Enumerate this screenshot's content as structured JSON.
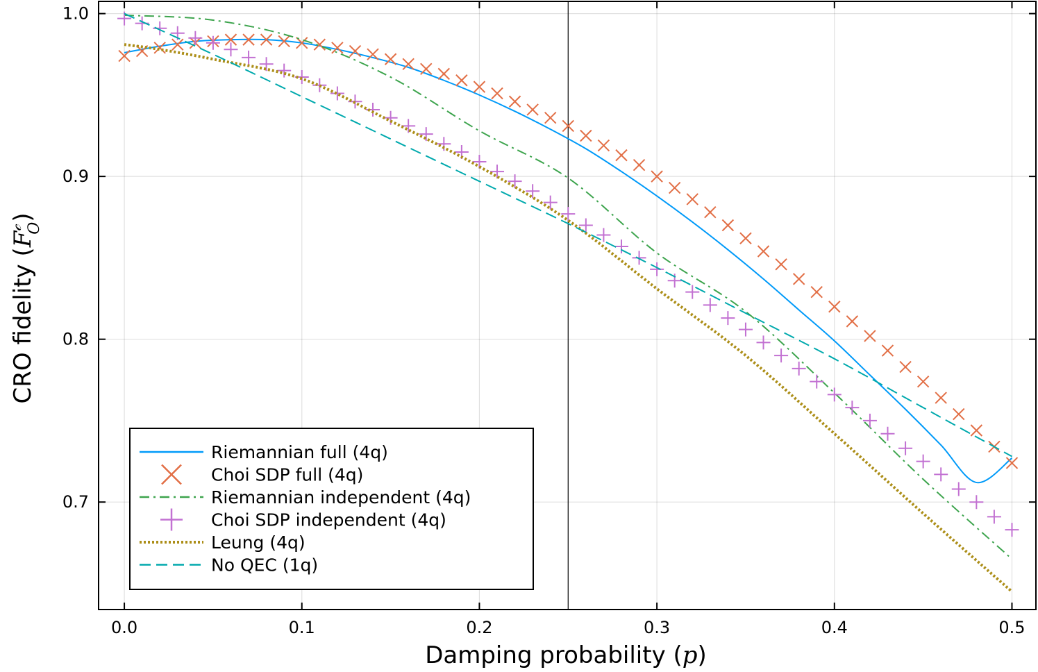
{
  "chart_data": {
    "type": "line",
    "title": "",
    "xlabel": "Damping probability (",
    "xlabel_math": "p",
    "xlabel_end": ")",
    "ylabel": "CRO fidelity (",
    "ylabel_math": "F",
    "ylabel_math_sup": "𝒸",
    "ylabel_math_sub": "O",
    "ylabel_end": ")",
    "xlim": [
      -0.0145,
      0.5135
    ],
    "ylim": [
      0.634,
      1.0075
    ],
    "xticks": [
      0.0,
      0.1,
      0.2,
      0.3,
      0.4,
      0.5
    ],
    "xtick_labels": [
      "0.0",
      "0.1",
      "0.2",
      "0.3",
      "0.4",
      "0.5"
    ],
    "yticks": [
      0.7,
      0.8,
      0.9,
      1.0
    ],
    "ytick_labels": [
      "0.7",
      "0.8",
      "0.9",
      "1.0"
    ],
    "grid": true,
    "vline_x": 0.25,
    "legend_position": "bottom-left",
    "colors": {
      "riemannian_full": "#009af9",
      "choi_full": "#e26f46",
      "riemannian_indep": "#3da44d",
      "choi_indep": "#c271d2",
      "leung": "#ac8e18",
      "no_qec": "#00a9ad"
    },
    "series": [
      {
        "name": "Riemannian full (4q)",
        "key": "riemannian_full",
        "style": "solid",
        "x": [
          0.0,
          0.02,
          0.04,
          0.06,
          0.08,
          0.1,
          0.12,
          0.14,
          0.16,
          0.18,
          0.2,
          0.22,
          0.24,
          0.26,
          0.28,
          0.3,
          0.32,
          0.34,
          0.36,
          0.38,
          0.4,
          0.42,
          0.44,
          0.46,
          0.48,
          0.5
        ],
        "y": [
          0.976,
          0.98,
          0.983,
          0.984,
          0.984,
          0.982,
          0.978,
          0.973,
          0.967,
          0.959,
          0.95,
          0.94,
          0.929,
          0.917,
          0.903,
          0.888,
          0.872,
          0.855,
          0.837,
          0.818,
          0.799,
          0.778,
          0.757,
          0.735,
          0.712,
          0.727
        ]
      },
      {
        "name": "Choi SDP full (4q)",
        "key": "choi_full",
        "style": "x-marker",
        "x": [
          0.0,
          0.01,
          0.02,
          0.03,
          0.04,
          0.05,
          0.06,
          0.07,
          0.08,
          0.09,
          0.1,
          0.11,
          0.12,
          0.13,
          0.14,
          0.15,
          0.16,
          0.17,
          0.18,
          0.19,
          0.2,
          0.21,
          0.22,
          0.23,
          0.24,
          0.25,
          0.26,
          0.27,
          0.28,
          0.29,
          0.3,
          0.31,
          0.32,
          0.33,
          0.34,
          0.35,
          0.36,
          0.37,
          0.38,
          0.39,
          0.4,
          0.41,
          0.42,
          0.43,
          0.44,
          0.45,
          0.46,
          0.47,
          0.48,
          0.49,
          0.5
        ],
        "y": [
          0.974,
          0.977,
          0.979,
          0.981,
          0.982,
          0.983,
          0.984,
          0.984,
          0.984,
          0.983,
          0.982,
          0.981,
          0.979,
          0.977,
          0.975,
          0.972,
          0.969,
          0.966,
          0.963,
          0.959,
          0.955,
          0.951,
          0.946,
          0.941,
          0.936,
          0.931,
          0.925,
          0.919,
          0.913,
          0.907,
          0.9,
          0.893,
          0.886,
          0.878,
          0.87,
          0.862,
          0.854,
          0.846,
          0.837,
          0.829,
          0.82,
          0.811,
          0.802,
          0.793,
          0.783,
          0.774,
          0.764,
          0.754,
          0.744,
          0.734,
          0.724
        ]
      },
      {
        "name": "Riemannian independent (4q)",
        "key": "riemannian_indep",
        "style": "dashdot",
        "x": [
          0.0,
          0.05,
          0.1,
          0.15,
          0.2,
          0.25,
          0.3,
          0.35,
          0.4,
          0.45,
          0.5
        ],
        "y": [
          0.999,
          0.996,
          0.984,
          0.961,
          0.928,
          0.899,
          0.853,
          0.817,
          0.767,
          0.714,
          0.665
        ]
      },
      {
        "name": "Choi SDP independent (4q)",
        "key": "choi_indep",
        "style": "plus-marker",
        "x": [
          0.0,
          0.01,
          0.02,
          0.03,
          0.04,
          0.05,
          0.06,
          0.07,
          0.08,
          0.09,
          0.1,
          0.11,
          0.12,
          0.13,
          0.14,
          0.15,
          0.16,
          0.17,
          0.18,
          0.19,
          0.2,
          0.21,
          0.22,
          0.23,
          0.24,
          0.25,
          0.26,
          0.27,
          0.28,
          0.29,
          0.3,
          0.31,
          0.32,
          0.33,
          0.34,
          0.35,
          0.36,
          0.37,
          0.38,
          0.39,
          0.4,
          0.41,
          0.42,
          0.43,
          0.44,
          0.45,
          0.46,
          0.47,
          0.48,
          0.49,
          0.5
        ],
        "y": [
          0.997,
          0.994,
          0.991,
          0.988,
          0.985,
          0.982,
          0.978,
          0.973,
          0.969,
          0.965,
          0.961,
          0.956,
          0.951,
          0.946,
          0.941,
          0.936,
          0.931,
          0.926,
          0.92,
          0.915,
          0.909,
          0.903,
          0.897,
          0.891,
          0.884,
          0.877,
          0.87,
          0.864,
          0.857,
          0.85,
          0.843,
          0.836,
          0.829,
          0.821,
          0.813,
          0.806,
          0.798,
          0.79,
          0.782,
          0.774,
          0.766,
          0.758,
          0.75,
          0.742,
          0.733,
          0.725,
          0.717,
          0.708,
          0.7,
          0.691,
          0.683
        ]
      },
      {
        "name": "Leung (4q)",
        "key": "leung",
        "style": "dotted",
        "x": [
          0.0,
          0.02,
          0.05,
          0.1,
          0.15,
          0.2,
          0.25,
          0.3,
          0.35,
          0.4,
          0.45,
          0.5
        ],
        "y": [
          0.981,
          0.978,
          0.972,
          0.96,
          0.934,
          0.906,
          0.873,
          0.831,
          0.79,
          0.742,
          0.693,
          0.645
        ]
      },
      {
        "name": "No QEC (1q)",
        "key": "no_qec",
        "style": "dashed",
        "x": [
          0.0,
          0.05,
          0.1,
          0.15,
          0.2,
          0.25,
          0.3,
          0.35,
          0.4,
          0.45,
          0.5
        ],
        "y": [
          1.0,
          0.975,
          0.949,
          0.923,
          0.897,
          0.871,
          0.844,
          0.816,
          0.788,
          0.758,
          0.728
        ]
      }
    ]
  }
}
